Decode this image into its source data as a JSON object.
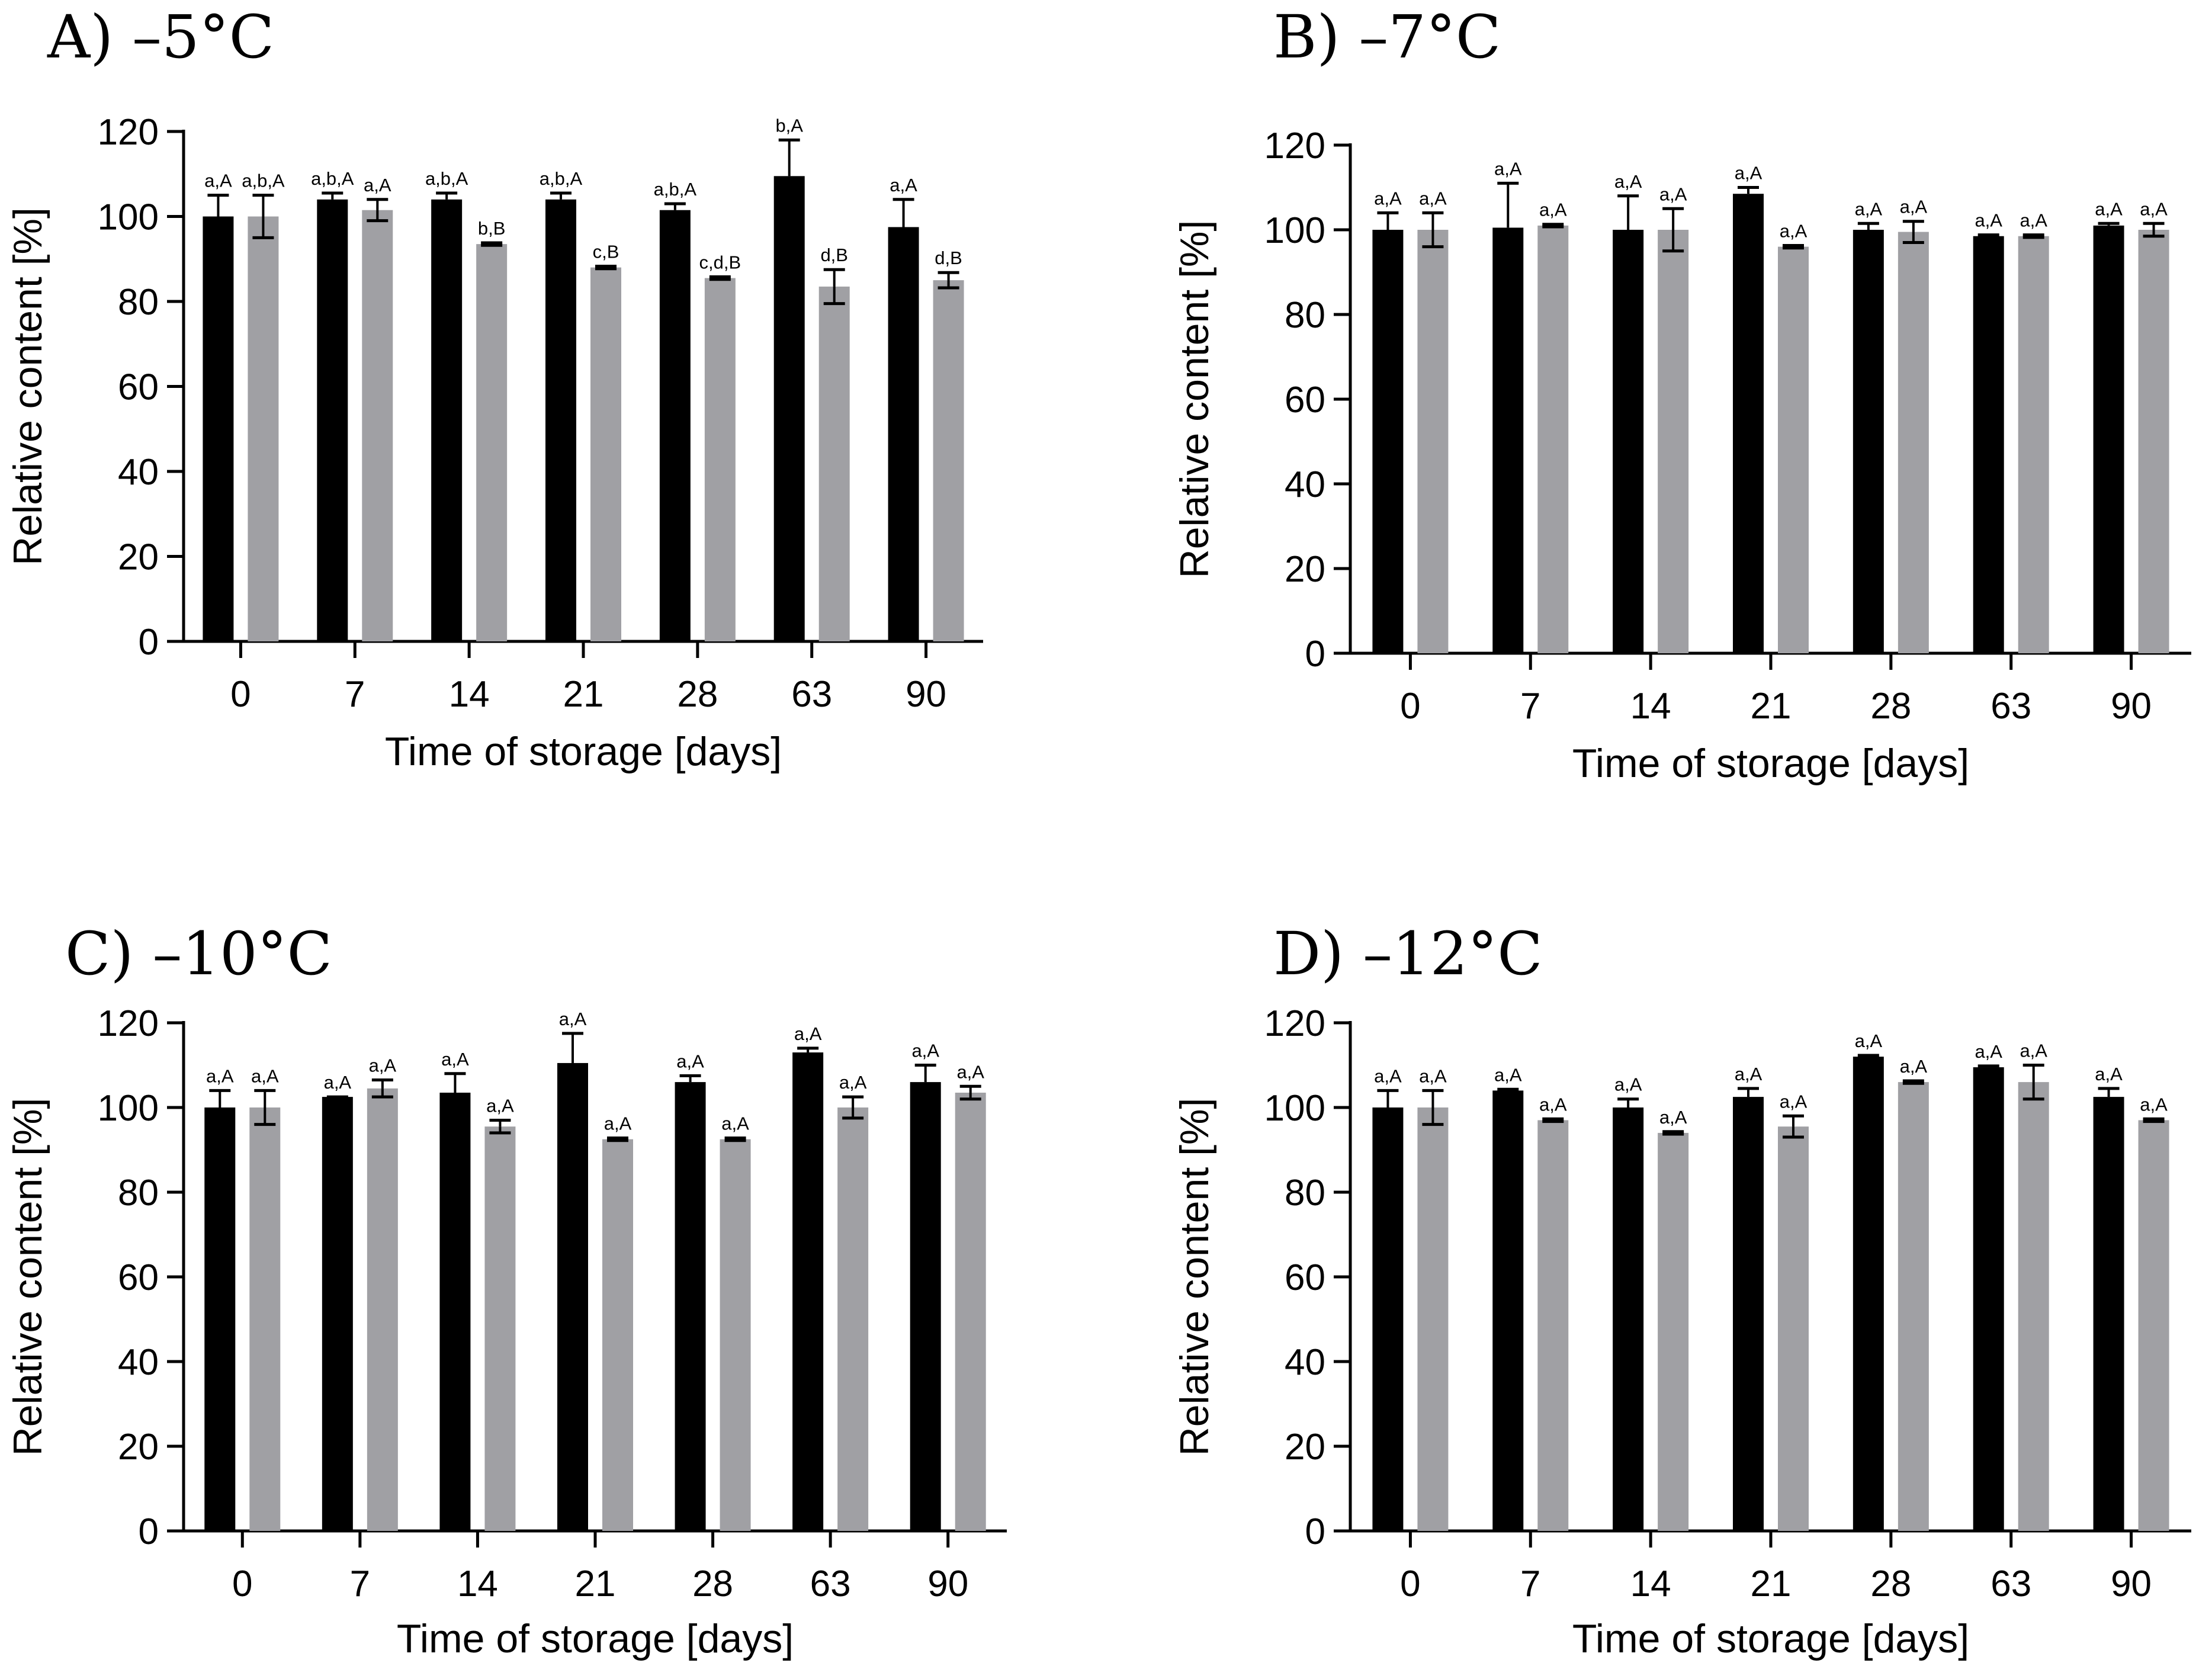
{
  "colors": {
    "series_black": "#000000",
    "series_gray": "#a0a0a4",
    "axis": "#000000"
  },
  "chart_data": [
    {
      "type": "bar",
      "panel": "A)",
      "title": "–5°C",
      "xlabel": "Time of storage [days]",
      "ylabel": "Relative content [%]",
      "ylim": [
        0,
        120
      ],
      "yticks": [
        "0",
        "20",
        "40",
        "60",
        "80",
        "100",
        "120"
      ],
      "categories": [
        "0",
        "7",
        "14",
        "21",
        "28",
        "63",
        "90"
      ],
      "series": [
        {
          "name": "black",
          "color": "#000000",
          "values": [
            100,
            104,
            104,
            104,
            101.5,
            109.5,
            97.5
          ],
          "errors": [
            5,
            1.5,
            1.5,
            1.5,
            1.5,
            8.5,
            6.5
          ],
          "labels": [
            "a,A",
            "a,b,A",
            "a,b,A",
            "a,b,A",
            "a,b,A",
            "b,A",
            "a,A"
          ]
        },
        {
          "name": "gray",
          "color": "#a0a0a4",
          "values": [
            100,
            101.5,
            93.5,
            88,
            85.5,
            83.5,
            85
          ],
          "errors": [
            5,
            2.5,
            0.3,
            0.3,
            0.3,
            4,
            1.8
          ],
          "labels": [
            "a,b,A",
            "a,A",
            "b,B",
            "c,B",
            "c,d,B",
            "d,B",
            "d,B"
          ]
        }
      ]
    },
    {
      "type": "bar",
      "panel": "B)",
      "title": "–7°C",
      "xlabel": "Time of storage [days]",
      "ylabel": "Relative content [%]",
      "ylim": [
        0,
        120
      ],
      "yticks": [
        "0",
        "20",
        "40",
        "60",
        "80",
        "100",
        "120"
      ],
      "categories": [
        "0",
        "7",
        "14",
        "21",
        "28",
        "63",
        "90"
      ],
      "series": [
        {
          "name": "black",
          "color": "#000000",
          "values": [
            100,
            100.5,
            100,
            108.5,
            100,
            98.5,
            101
          ],
          "errors": [
            4,
            10.5,
            8,
            1.5,
            1.5,
            0.3,
            0.5
          ],
          "labels": [
            "a,A",
            "a,A",
            "a,A",
            "a,A",
            "a,A",
            "a,A",
            "a,A"
          ]
        },
        {
          "name": "gray",
          "color": "#a0a0a4",
          "values": [
            100,
            101,
            100,
            96,
            99.5,
            98.5,
            100
          ],
          "errors": [
            4,
            0.3,
            5,
            0.3,
            2.5,
            0.3,
            1.5
          ],
          "labels": [
            "a,A",
            "a,A",
            "a,A",
            "a,A",
            "a,A",
            "a,A",
            "a,A"
          ]
        }
      ]
    },
    {
      "type": "bar",
      "panel": "C)",
      "title": "–10°C",
      "xlabel": "Time of storage [days]",
      "ylabel": "Relative content [%]",
      "ylim": [
        0,
        120
      ],
      "yticks": [
        "0",
        "20",
        "40",
        "60",
        "80",
        "100",
        "120"
      ],
      "categories": [
        "0",
        "7",
        "14",
        "21",
        "28",
        "63",
        "90"
      ],
      "series": [
        {
          "name": "black",
          "color": "#000000",
          "values": [
            100,
            102.5,
            103.5,
            110.5,
            106,
            113,
            106
          ],
          "errors": [
            4,
            0,
            4.5,
            7,
            1.5,
            1,
            4
          ],
          "labels": [
            "a,A",
            "a,A",
            "a,A",
            "a,A",
            "a,A",
            "a,A",
            "a,A"
          ]
        },
        {
          "name": "gray",
          "color": "#a0a0a4",
          "values": [
            100,
            104.5,
            95.5,
            92.5,
            92.5,
            100,
            103.5
          ],
          "errors": [
            4,
            2,
            1.5,
            0.3,
            0.3,
            2.5,
            1.5
          ],
          "labels": [
            "a,A",
            "a,A",
            "a,A",
            "a,A",
            "a,A",
            "a,A",
            "a,A"
          ]
        }
      ]
    },
    {
      "type": "bar",
      "panel": "D)",
      "title": "–12°C",
      "xlabel": "Time of storage [days]",
      "ylabel": "Relative content [%]",
      "ylim": [
        0,
        120
      ],
      "yticks": [
        "0",
        "20",
        "40",
        "60",
        "80",
        "100",
        "120"
      ],
      "categories": [
        "0",
        "7",
        "14",
        "21",
        "28",
        "63",
        "90"
      ],
      "series": [
        {
          "name": "black",
          "color": "#000000",
          "values": [
            100,
            104,
            100,
            102.5,
            112,
            109.5,
            102.5
          ],
          "errors": [
            4,
            0.3,
            2,
            2,
            0.3,
            0.3,
            2
          ],
          "labels": [
            "a,A",
            "a,A",
            "a,A",
            "a,A",
            "a,A",
            "a,A",
            "a,A"
          ]
        },
        {
          "name": "gray",
          "color": "#a0a0a4",
          "values": [
            100,
            97,
            94,
            95.5,
            106,
            106,
            97
          ],
          "errors": [
            4,
            0.3,
            0.3,
            2.5,
            0.3,
            4,
            0.3
          ],
          "labels": [
            "a,A",
            "a,A",
            "a,A",
            "a,A",
            "a,A",
            "a,A",
            "a,A"
          ]
        }
      ]
    }
  ]
}
